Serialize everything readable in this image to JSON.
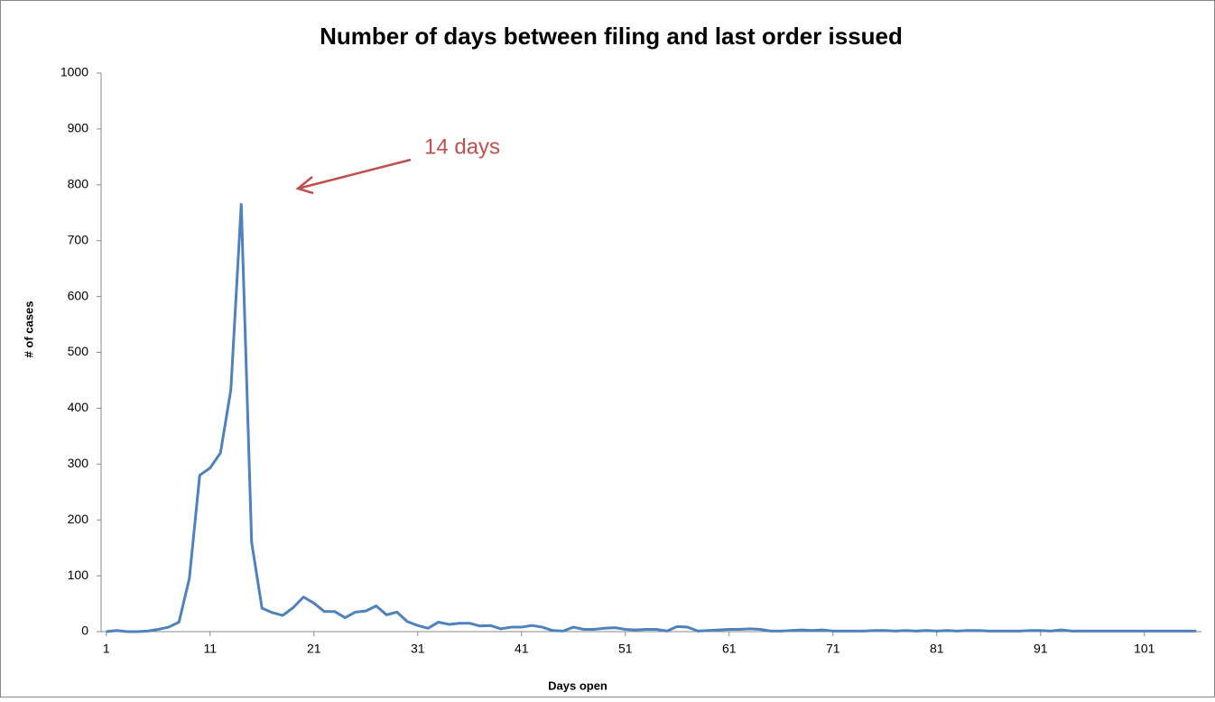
{
  "chart_data": {
    "type": "line",
    "title": "Number of days between filing and last order issued",
    "x_label": "Days open",
    "y_label": "# of cases",
    "annotation": "14 days",
    "x": [
      1,
      2,
      3,
      4,
      5,
      6,
      7,
      8,
      9,
      10,
      11,
      12,
      13,
      14,
      15,
      16,
      17,
      18,
      19,
      20,
      21,
      22,
      23,
      24,
      25,
      26,
      27,
      28,
      29,
      30,
      31,
      32,
      33,
      34,
      35,
      36,
      37,
      38,
      39,
      40,
      41,
      42,
      43,
      44,
      45,
      46,
      47,
      48,
      49,
      50,
      51,
      52,
      53,
      54,
      55,
      56,
      57,
      58,
      59,
      60,
      61,
      62,
      63,
      64,
      65,
      66,
      67,
      68,
      69,
      70,
      71,
      72,
      73,
      74,
      75,
      76,
      77,
      78,
      79,
      80,
      81,
      82,
      83,
      84,
      85,
      86,
      87,
      88,
      89,
      90,
      91,
      92,
      93,
      94,
      95,
      96,
      97,
      98,
      99,
      100,
      101,
      102,
      103,
      104,
      105,
      106
    ],
    "series": [
      {
        "name": "# of cases",
        "color": "#4f81bd",
        "values": [
          0,
          2,
          0,
          0,
          1,
          4,
          8,
          17,
          95,
          280,
          293,
          320,
          433,
          765,
          160,
          42,
          34,
          29,
          43,
          62,
          51,
          36,
          36,
          25,
          35,
          37,
          46,
          30,
          35,
          18,
          11,
          6,
          17,
          13,
          15,
          15,
          10,
          11,
          5,
          8,
          8,
          11,
          8,
          2,
          1,
          8,
          4,
          4,
          6,
          7,
          4,
          3,
          4,
          4,
          1,
          9,
          8,
          1,
          2,
          3,
          4,
          4,
          5,
          4,
          1,
          1,
          2,
          3,
          2,
          3,
          1,
          1,
          1,
          1,
          2,
          2,
          1,
          2,
          1,
          2,
          1,
          2,
          1,
          2,
          2,
          1,
          1,
          1,
          1,
          2,
          2,
          1,
          3,
          1,
          1,
          1,
          1,
          1,
          1,
          1,
          1,
          1,
          1,
          1,
          1,
          1
        ]
      }
    ],
    "xlim": [
      0.5,
      106.5
    ],
    "xticks": [
      1,
      11,
      21,
      31,
      41,
      51,
      61,
      71,
      81,
      91,
      101
    ],
    "ylim": [
      0,
      1000
    ],
    "yticks": [
      0,
      100,
      200,
      300,
      400,
      500,
      600,
      700,
      800,
      900,
      1000
    ],
    "grid": false,
    "annotation_color": "#c0504d"
  }
}
